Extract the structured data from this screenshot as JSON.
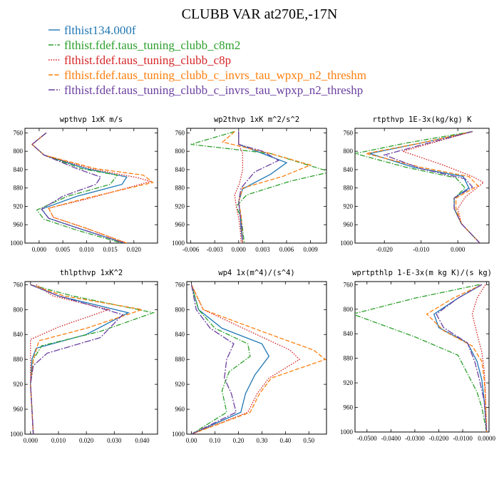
{
  "title": "CLUBB VAR at270E,-17N",
  "legend": [
    {
      "label": "flthist134.000f",
      "color": "#1f77b4",
      "dash": "solid"
    },
    {
      "label": "flthist.fdef.taus_tuning_clubb_c8m2",
      "color": "#2ca02c",
      "dash": "dashdot"
    },
    {
      "label": "flthist.fdef.taus_tuning_clubb_c8p",
      "color": "#d62728",
      "dash": "dot"
    },
    {
      "label": "flthist.fdef.taus_tuning_clubb_c_invrs_tau_wpxp_n2_threshm",
      "color": "#ff7f0e",
      "dash": "dash"
    },
    {
      "label": "flthist.fdef.taus_tuning_clubb_c_invrs_tau_wpxp_n2_threshp",
      "color": "#6b3fa0",
      "dash": "longdash"
    }
  ],
  "chart_data": [
    {
      "type": "line",
      "title": "wpthvp  1xK m/s",
      "xlim": [
        -0.003,
        0.025
      ],
      "ylim": [
        1000,
        750
      ],
      "xticks": [
        0.0,
        0.005,
        0.01,
        0.015,
        0.02
      ],
      "xticklabels": [
        "0.000",
        "0.005",
        "0.010",
        "0.015",
        "0.020"
      ],
      "yticks": [
        760,
        800,
        840,
        880,
        920,
        960,
        1000
      ],
      "yticklabels": [
        "760",
        "800",
        "840",
        "880",
        "920",
        "960",
        "1000"
      ],
      "series": [
        {
          "x": [
            0.0015,
            -0.0015,
            0.001,
            0.01,
            0.0185,
            0.0175,
            0.008,
            0.0005,
            0.002,
            0.009,
            0.018
          ],
          "y": [
            760,
            785,
            808,
            838,
            856,
            872,
            898,
            926,
            946,
            970,
            1000
          ]
        },
        {
          "x": [
            0.0015,
            -0.0015,
            0.001,
            0.009,
            0.0165,
            0.015,
            0.006,
            -0.0005,
            0.001,
            0.008,
            0.0175
          ],
          "y": [
            760,
            785,
            808,
            838,
            852,
            872,
            898,
            928,
            948,
            972,
            1000
          ]
        },
        {
          "x": [
            0.0015,
            -0.0015,
            0.001,
            0.011,
            0.021,
            0.0235,
            0.01,
            0.002,
            0.003,
            0.01,
            0.0185
          ],
          "y": [
            760,
            785,
            808,
            838,
            858,
            866,
            904,
            924,
            944,
            968,
            1000
          ]
        },
        {
          "x": [
            0.0015,
            -0.0015,
            0.001,
            0.012,
            0.022,
            0.024,
            0.01,
            0.002,
            0.003,
            0.01,
            0.0185
          ],
          "y": [
            760,
            785,
            808,
            838,
            852,
            868,
            902,
            924,
            944,
            968,
            1000
          ]
        },
        {
          "x": [
            0.0015,
            -0.0015,
            0.001,
            0.008,
            0.013,
            0.012,
            0.005,
            0.0005,
            0.002,
            0.009,
            0.018
          ],
          "y": [
            760,
            785,
            808,
            838,
            856,
            872,
            898,
            926,
            946,
            970,
            1000
          ]
        }
      ]
    },
    {
      "type": "line",
      "title": "wp2thvp  1xK m^2/s^2",
      "xlim": [
        -0.0065,
        0.011
      ],
      "ylim": [
        1000,
        750
      ],
      "xticks": [
        -0.006,
        -0.003,
        0.0,
        0.003,
        0.006,
        0.009
      ],
      "xticklabels": [
        "-0.006",
        "-0.003",
        "0.000",
        "0.003",
        "0.006",
        "0.009"
      ],
      "yticks": [
        760,
        800,
        840,
        880,
        920,
        960,
        1000
      ],
      "yticklabels": [
        "760",
        "800",
        "840",
        "880",
        "920",
        "960",
        "1000"
      ],
      "series": [
        {
          "x": [
            0.0,
            0.0,
            0.003,
            0.006,
            0.004,
            0.0005,
            0.0,
            0.0002,
            0.0003,
            0.0005
          ],
          "y": [
            757,
            785,
            805,
            825,
            850,
            882,
            910,
            940,
            970,
            1000
          ]
        },
        {
          "x": [
            -0.0005,
            -0.006,
            0.004,
            0.0115,
            0.0065,
            0.001,
            -0.0003,
            0.0003,
            0.0005,
            0.0007
          ],
          "y": [
            757,
            785,
            805,
            845,
            865,
            895,
            920,
            945,
            970,
            1000
          ]
        },
        {
          "x": [
            0.0,
            0.0,
            0.0005,
            0.0005,
            0.0001,
            -0.0005,
            -0.0003,
            0.0,
            0.0002,
            0.0003
          ],
          "y": [
            757,
            785,
            805,
            840,
            870,
            895,
            920,
            945,
            970,
            1000
          ]
        },
        {
          "x": [
            -0.0005,
            -0.002,
            0.004,
            0.009,
            0.0055,
            0.0005,
            0.0,
            0.0003,
            0.0004,
            0.0005
          ],
          "y": [
            757,
            780,
            805,
            830,
            855,
            880,
            910,
            940,
            970,
            1000
          ]
        },
        {
          "x": [
            0.0,
            0.0,
            0.003,
            0.005,
            0.002,
            0.0003,
            0.0,
            0.0002,
            0.0004,
            0.0005
          ],
          "y": [
            757,
            785,
            800,
            820,
            845,
            880,
            910,
            940,
            970,
            1000
          ]
        }
      ]
    },
    {
      "type": "line",
      "title": "rtpthvp  1E-3x(kg/kg) K",
      "xlim": [
        -0.028,
        0.0085
      ],
      "ylim": [
        1000,
        750
      ],
      "xticks": [
        -0.02,
        -0.01,
        0.0
      ],
      "xticklabels": [
        "-0.020",
        "-0.010",
        "0.000"
      ],
      "yticks": [
        760,
        800,
        840,
        880,
        920,
        960,
        1000
      ],
      "yticklabels": [
        "760",
        "800",
        "840",
        "880",
        "920",
        "960",
        "1000"
      ],
      "series": [
        {
          "x": [
            0.004,
            -0.01,
            -0.024,
            -0.012,
            0.0015,
            0.003,
            -0.001,
            -0.001,
            0.001,
            0.006
          ],
          "y": [
            757,
            782,
            805,
            835,
            855,
            880,
            902,
            925,
            958,
            1000
          ]
        },
        {
          "x": [
            0.004,
            -0.014,
            -0.028,
            -0.014,
            -0.0005,
            0.002,
            -0.001,
            -0.001,
            0.001,
            0.006
          ],
          "y": [
            757,
            782,
            805,
            835,
            858,
            880,
            902,
            925,
            958,
            1000
          ]
        },
        {
          "x": [
            0.004,
            -0.004,
            -0.015,
            -0.004,
            0.004,
            0.007,
            0.002,
            0.0,
            0.001,
            0.006
          ],
          "y": [
            757,
            775,
            800,
            830,
            855,
            868,
            900,
            925,
            958,
            1000
          ]
        },
        {
          "x": [
            0.004,
            -0.01,
            -0.025,
            -0.01,
            0.003,
            0.0055,
            -0.0005,
            -0.0005,
            0.001,
            0.006
          ],
          "y": [
            757,
            782,
            805,
            835,
            855,
            875,
            902,
            925,
            958,
            1000
          ]
        },
        {
          "x": [
            0.004,
            -0.008,
            -0.02,
            -0.01,
            0.002,
            0.004,
            -0.001,
            -0.001,
            0.001,
            0.006
          ],
          "y": [
            757,
            782,
            808,
            838,
            860,
            878,
            902,
            925,
            958,
            1000
          ]
        }
      ]
    },
    {
      "type": "line",
      "title": "thlpthvp  1xK^2",
      "xlim": [
        -0.002,
        0.0455
      ],
      "ylim": [
        1000,
        755
      ],
      "xticks": [
        0.0,
        0.01,
        0.02,
        0.03,
        0.04
      ],
      "xticklabels": [
        "0.000",
        "0.010",
        "0.020",
        "0.030",
        "0.040"
      ],
      "yticks": [
        760,
        800,
        840,
        880,
        920,
        960,
        1000
      ],
      "yticklabels": [
        "760",
        "800",
        "840",
        "880",
        "920",
        "960",
        "1000"
      ],
      "series": [
        {
          "x": [
            0.0,
            0.01,
            0.035,
            0.02,
            0.002,
            0.0005,
            0.0,
            0.0005,
            0.001
          ],
          "y": [
            760,
            778,
            805,
            840,
            862,
            880,
            920,
            960,
            1000
          ]
        },
        {
          "x": [
            0.0,
            0.015,
            0.044,
            0.025,
            0.004,
            0.001,
            0.0,
            0.0005,
            0.001
          ],
          "y": [
            760,
            778,
            805,
            835,
            858,
            880,
            920,
            960,
            1000
          ]
        },
        {
          "x": [
            0.002,
            0.008,
            0.028,
            0.01,
            0.0,
            0.0,
            0.0,
            0.0005,
            0.001
          ],
          "y": [
            760,
            778,
            800,
            828,
            848,
            880,
            920,
            960,
            1000
          ]
        },
        {
          "x": [
            0.0,
            0.012,
            0.04,
            0.02,
            0.003,
            0.001,
            0.0,
            0.0005,
            0.001
          ],
          "y": [
            760,
            778,
            800,
            830,
            850,
            880,
            920,
            960,
            1000
          ]
        },
        {
          "x": [
            0.0,
            0.01,
            0.033,
            0.025,
            0.006,
            0.001,
            0.0,
            0.0005,
            0.001
          ],
          "y": [
            760,
            778,
            808,
            845,
            870,
            890,
            920,
            960,
            1000
          ]
        }
      ]
    },
    {
      "type": "line",
      "title": "wp4  1x(m^4)/(s^4)",
      "xlim": [
        -0.02,
        0.575
      ],
      "ylim": [
        1000,
        755
      ],
      "xticks": [
        0.0,
        0.1,
        0.2,
        0.3,
        0.4,
        0.5
      ],
      "xticklabels": [
        "0.00",
        "0.10",
        "0.20",
        "0.30",
        "0.40",
        "0.50"
      ],
      "yticks": [
        760,
        800,
        840,
        880,
        920,
        960,
        1000
      ],
      "yticklabels": [
        "760",
        "800",
        "840",
        "880",
        "920",
        "960",
        "1000"
      ],
      "series": [
        {
          "x": [
            0.0,
            0.03,
            0.13,
            0.3,
            0.33,
            0.27,
            0.23,
            0.21,
            0.0
          ],
          "y": [
            760,
            800,
            830,
            855,
            875,
            905,
            935,
            965,
            1000
          ]
        },
        {
          "x": [
            0.0,
            0.03,
            0.1,
            0.24,
            0.25,
            0.16,
            0.13,
            0.15,
            0.0
          ],
          "y": [
            760,
            800,
            830,
            855,
            875,
            900,
            930,
            965,
            1000
          ]
        },
        {
          "x": [
            0.0,
            0.05,
            0.22,
            0.42,
            0.46,
            0.33,
            0.28,
            0.24,
            0.0
          ],
          "y": [
            760,
            800,
            830,
            865,
            880,
            910,
            935,
            965,
            1000
          ]
        },
        {
          "x": [
            0.0,
            0.05,
            0.3,
            0.52,
            0.57,
            0.34,
            0.29,
            0.25,
            0.0
          ],
          "y": [
            760,
            800,
            835,
            865,
            880,
            910,
            935,
            965,
            1000
          ]
        },
        {
          "x": [
            0.0,
            0.02,
            0.08,
            0.18,
            0.15,
            0.14,
            0.17,
            0.19,
            0.0
          ],
          "y": [
            760,
            800,
            830,
            855,
            880,
            910,
            935,
            965,
            1000
          ]
        }
      ]
    },
    {
      "type": "line",
      "title": "wprtpthlp  1-E-3x(m kg K)/(s kg)",
      "xlim": [
        -0.055,
        0.001
      ],
      "ylim": [
        1000,
        755
      ],
      "xticks": [
        -0.05,
        -0.04,
        -0.03,
        -0.02,
        -0.01,
        0.0
      ],
      "xticklabels": [
        "-0.0500",
        "-0.0400",
        "-0.0300",
        "-0.0200",
        "-0.0100",
        "0.0000"
      ],
      "yticks": [
        760,
        800,
        840,
        880,
        920,
        960,
        1000
      ],
      "yticklabels": [
        "760",
        "800",
        "840",
        "880",
        "920",
        "960",
        "1000"
      ],
      "series": [
        {
          "x": [
            -0.002,
            -0.012,
            -0.022,
            -0.02,
            -0.008,
            -0.004,
            -0.002,
            -0.001,
            0.0
          ],
          "y": [
            760,
            782,
            808,
            830,
            855,
            885,
            915,
            950,
            1000
          ]
        },
        {
          "x": [
            -0.003,
            -0.03,
            -0.056,
            -0.03,
            -0.012,
            -0.008,
            -0.004,
            -0.002,
            0.0
          ],
          "y": [
            760,
            782,
            808,
            845,
            875,
            905,
            935,
            960,
            1000
          ]
        },
        {
          "x": [
            -0.0005,
            -0.004,
            -0.006,
            -0.004,
            -0.002,
            -0.001,
            -0.0005,
            -0.0003,
            0.0
          ],
          "y": [
            760,
            782,
            808,
            840,
            870,
            900,
            935,
            960,
            1000
          ]
        },
        {
          "x": [
            -0.002,
            -0.014,
            -0.025,
            -0.018,
            -0.006,
            -0.002,
            -0.001,
            -0.0005,
            0.0
          ],
          "y": [
            760,
            782,
            808,
            835,
            860,
            885,
            915,
            950,
            1000
          ]
        },
        {
          "x": [
            -0.002,
            -0.012,
            -0.021,
            -0.018,
            -0.008,
            -0.005,
            -0.003,
            -0.001,
            0.0
          ],
          "y": [
            760,
            782,
            808,
            830,
            855,
            885,
            915,
            950,
            1000
          ]
        }
      ]
    }
  ]
}
